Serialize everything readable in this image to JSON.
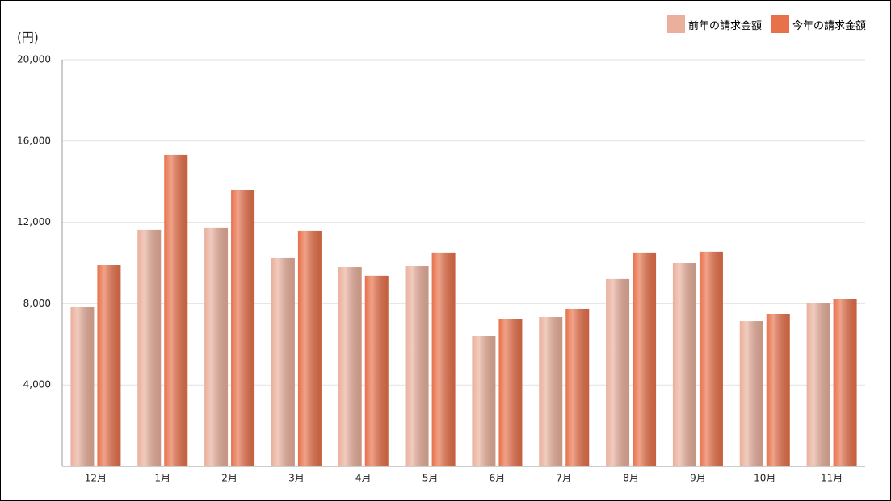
{
  "chart_data": {
    "type": "bar",
    "y_label": "(円)",
    "categories": [
      "12月",
      "1月",
      "2月",
      "3月",
      "4月",
      "5月",
      "6月",
      "7月",
      "8月",
      "9月",
      "10月",
      "11月"
    ],
    "series": [
      {
        "name": "前年の請求金額",
        "color": "#eab09c",
        "values": [
          7850,
          11630,
          11750,
          10240,
          9800,
          9840,
          6390,
          7340,
          9210,
          10000,
          7140,
          8020
        ]
      },
      {
        "name": "今年の請求金額",
        "color": "#e8714b",
        "values": [
          9880,
          15320,
          13610,
          11590,
          9370,
          10520,
          7260,
          7740,
          10520,
          10560,
          7500,
          8250
        ]
      }
    ],
    "ylim": [
      0,
      20000
    ],
    "yticks": [
      {
        "value": 4000,
        "label": "4,000"
      },
      {
        "value": 8000,
        "label": "8,000"
      },
      {
        "value": 12000,
        "label": "12,000"
      },
      {
        "value": 16000,
        "label": "16,000"
      },
      {
        "value": 20000,
        "label": "20,000"
      }
    ],
    "grid": true
  }
}
